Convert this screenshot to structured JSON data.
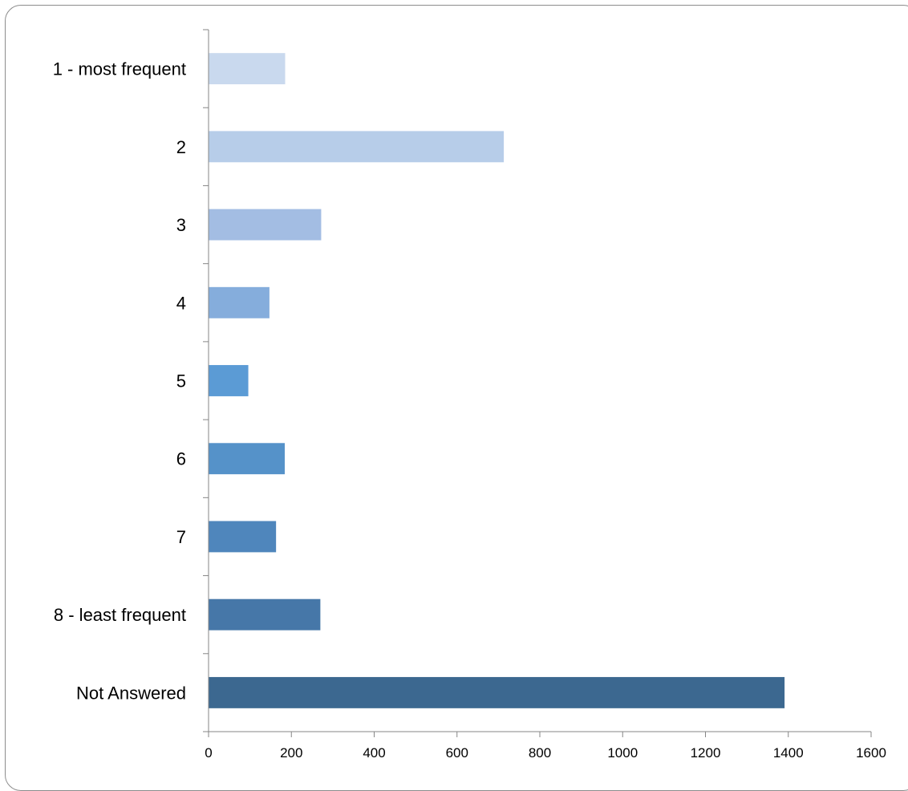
{
  "chart_data": {
    "type": "bar",
    "orientation": "horizontal",
    "title": "",
    "xlabel": "",
    "ylabel": "",
    "categories": [
      "1 - most frequent",
      "2",
      "3",
      "4",
      "5",
      "6",
      "7",
      "8 - least frequent",
      "Not Answered"
    ],
    "values": [
      185,
      713,
      272,
      147,
      96,
      184,
      163,
      270,
      1391
    ],
    "xlim": [
      0,
      1600
    ],
    "x_ticks": [
      "0",
      "200",
      "400",
      "600",
      "800",
      "1000",
      "1200",
      "1400",
      "1600"
    ],
    "grid": false,
    "legend": "none",
    "bar_colors": [
      "#c9d9ee",
      "#b7cde9",
      "#a3bde3",
      "#85addc",
      "#5b9bd5",
      "#5592c9",
      "#4f86bc",
      "#4677a8",
      "#3c6890"
    ],
    "axis_color": "#868686"
  }
}
